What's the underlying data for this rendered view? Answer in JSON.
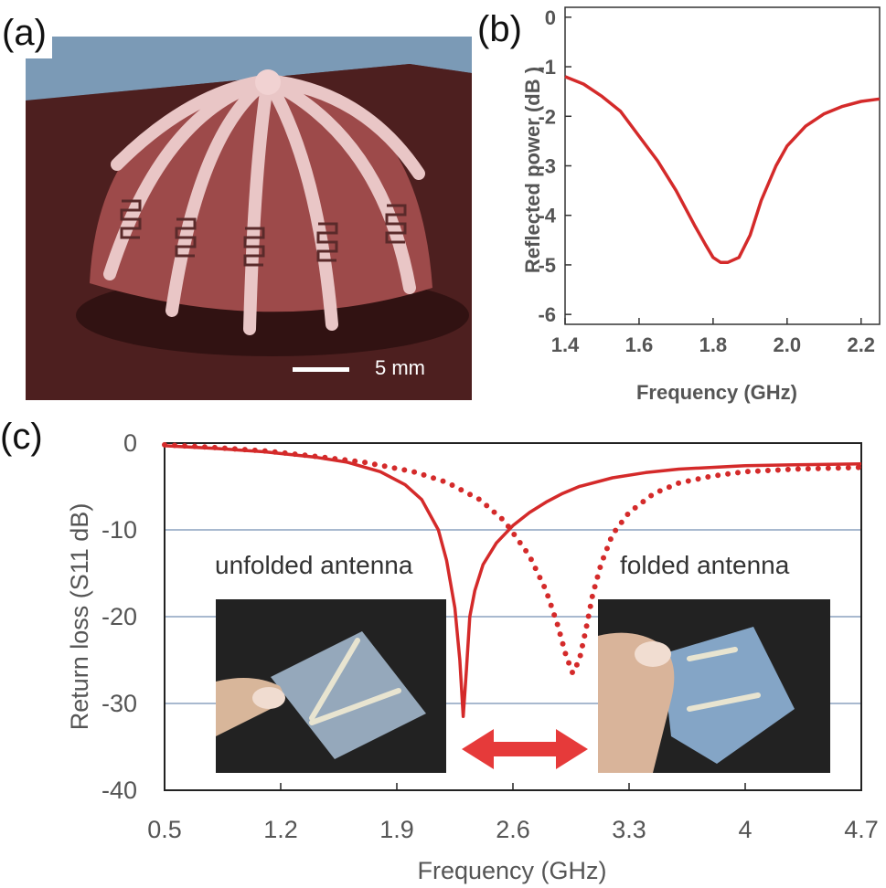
{
  "panels": {
    "a": "(a)",
    "b": "(b)",
    "c": "(c)"
  },
  "photo_a": {
    "scale_label": "5 mm"
  },
  "chart_data": [
    {
      "type": "line",
      "xlabel": "Frequency (GHz)",
      "ylabel": "Reflected power (dB )",
      "xlim": [
        1.4,
        2.25
      ],
      "ylim": [
        -6.2,
        0.2
      ],
      "xticks": [
        "1.4",
        "1.6",
        "1.8",
        "2.0",
        "2.2"
      ],
      "yticks": [
        "0",
        "-1",
        "-2",
        "-3",
        "-4",
        "-5",
        "-6"
      ],
      "color": "#d42a2a",
      "series": [
        {
          "x": [
            1.4,
            1.45,
            1.5,
            1.55,
            1.6,
            1.65,
            1.7,
            1.75,
            1.78,
            1.8,
            1.82,
            1.84,
            1.87,
            1.9,
            1.93,
            1.97,
            2.0,
            2.05,
            2.1,
            2.15,
            2.2,
            2.25
          ],
          "y": [
            -1.2,
            -1.35,
            -1.6,
            -1.9,
            -2.4,
            -2.9,
            -3.5,
            -4.2,
            -4.6,
            -4.85,
            -4.95,
            -4.95,
            -4.85,
            -4.4,
            -3.7,
            -3.0,
            -2.6,
            -2.2,
            -1.95,
            -1.8,
            -1.7,
            -1.65
          ]
        }
      ]
    },
    {
      "type": "line",
      "xlabel": "Frequency (GHz)",
      "ylabel": "Return loss (S11 dB)",
      "xlim": [
        0.5,
        4.7
      ],
      "ylim": [
        -40,
        0
      ],
      "xticks": [
        "0.5",
        "1.2",
        "1.9",
        "2.6",
        "3.3",
        "4",
        "4.7"
      ],
      "yticks": [
        "0",
        "-10",
        "-20",
        "-30",
        "-40"
      ],
      "grid": true,
      "color": "#d42a2a",
      "annotations": [
        "unfolded antenna",
        "folded antenna"
      ],
      "series": [
        {
          "name": "unfolded antenna",
          "style": "solid",
          "x": [
            0.5,
            0.8,
            1.1,
            1.4,
            1.6,
            1.8,
            1.95,
            2.05,
            2.15,
            2.2,
            2.25,
            2.28,
            2.3,
            2.32,
            2.34,
            2.37,
            2.42,
            2.5,
            2.6,
            2.7,
            2.8,
            2.9,
            3.0,
            3.2,
            3.4,
            3.6,
            3.8,
            4.0,
            4.3,
            4.7
          ],
          "y": [
            -0.3,
            -0.6,
            -1.0,
            -1.6,
            -2.2,
            -3.3,
            -4.8,
            -6.5,
            -10.0,
            -13.5,
            -19.0,
            -25.0,
            -31.5,
            -26.0,
            -20.0,
            -17.0,
            -14.0,
            -11.5,
            -9.5,
            -8.0,
            -6.8,
            -5.8,
            -5.0,
            -4.0,
            -3.4,
            -3.0,
            -2.8,
            -2.6,
            -2.5,
            -2.4
          ]
        },
        {
          "name": "folded antenna",
          "style": "dotted",
          "x": [
            0.5,
            0.8,
            1.1,
            1.4,
            1.7,
            2.0,
            2.2,
            2.4,
            2.55,
            2.7,
            2.8,
            2.87,
            2.92,
            2.96,
            3.0,
            3.04,
            3.08,
            3.13,
            3.2,
            3.3,
            3.45,
            3.6,
            3.8,
            4.0,
            4.3,
            4.7
          ],
          "y": [
            -0.2,
            -0.5,
            -0.9,
            -1.5,
            -2.2,
            -3.3,
            -4.5,
            -6.5,
            -9.0,
            -13.0,
            -17.0,
            -21.0,
            -24.5,
            -26.5,
            -25.0,
            -21.5,
            -17.5,
            -14.0,
            -10.5,
            -8.0,
            -5.8,
            -4.6,
            -3.8,
            -3.3,
            -3.0,
            -2.8
          ]
        }
      ]
    }
  ]
}
